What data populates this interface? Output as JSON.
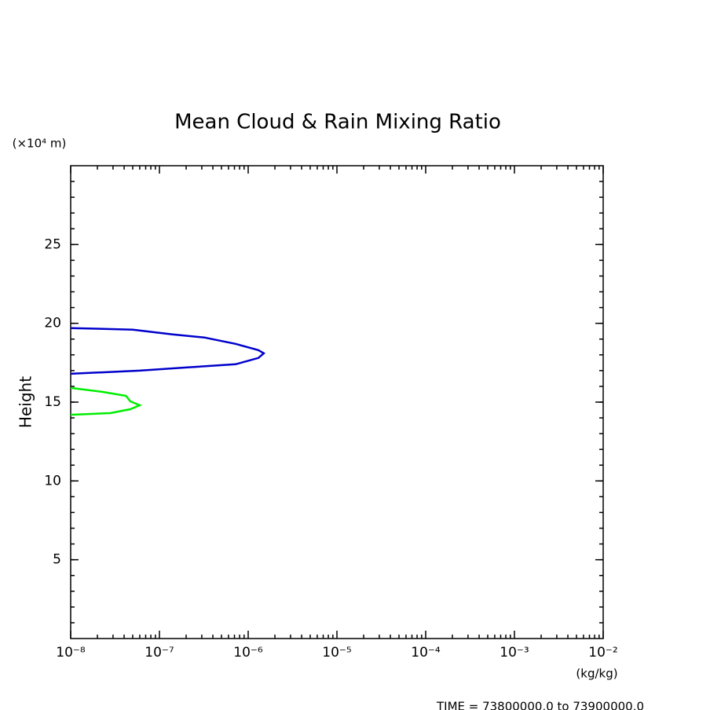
{
  "chart_data": {
    "type": "line",
    "title": "Mean Cloud & Rain Mixing Ratio",
    "y_unit": "(×10⁴ m)",
    "y_label": "Height",
    "x_unit": "(kg/kg)",
    "footer": "TIME = 73800000.0 to 73900000.0",
    "x_log": true,
    "xlim": [
      1e-08,
      0.01
    ],
    "xticks": [
      {
        "value": 1e-08,
        "label": "10⁻⁸"
      },
      {
        "value": 1e-07,
        "label": "10⁻⁷"
      },
      {
        "value": 1e-06,
        "label": "10⁻⁶"
      },
      {
        "value": 1e-05,
        "label": "10⁻⁵"
      },
      {
        "value": 0.0001,
        "label": "10⁻⁴"
      },
      {
        "value": 0.001,
        "label": "10⁻³"
      },
      {
        "value": 0.01,
        "label": "10⁻²"
      }
    ],
    "ylim": [
      0,
      30
    ],
    "yticks": [
      5,
      10,
      15,
      20,
      25
    ],
    "series": [
      {
        "color": "#0000cc",
        "x": [
          1e-08,
          5e-08,
          1.4e-07,
          3.2e-07,
          7.2e-07,
          1.3e-06,
          1.5e-06,
          1.3e-06,
          7.2e-07,
          2e-07,
          6e-08,
          1e-08
        ],
        "y": [
          19.7,
          19.6,
          19.3,
          19.1,
          18.7,
          18.3,
          18.1,
          17.8,
          17.4,
          17.2,
          17.0,
          16.8
        ]
      },
      {
        "color": "#00ee00",
        "x": [
          1e-08,
          2.3e-08,
          4.2e-08,
          4.7e-08,
          6e-08,
          4.7e-08,
          2.8e-08,
          1e-08
        ],
        "y": [
          15.9,
          15.65,
          15.4,
          15.05,
          14.8,
          14.55,
          14.3,
          14.2
        ]
      }
    ]
  }
}
